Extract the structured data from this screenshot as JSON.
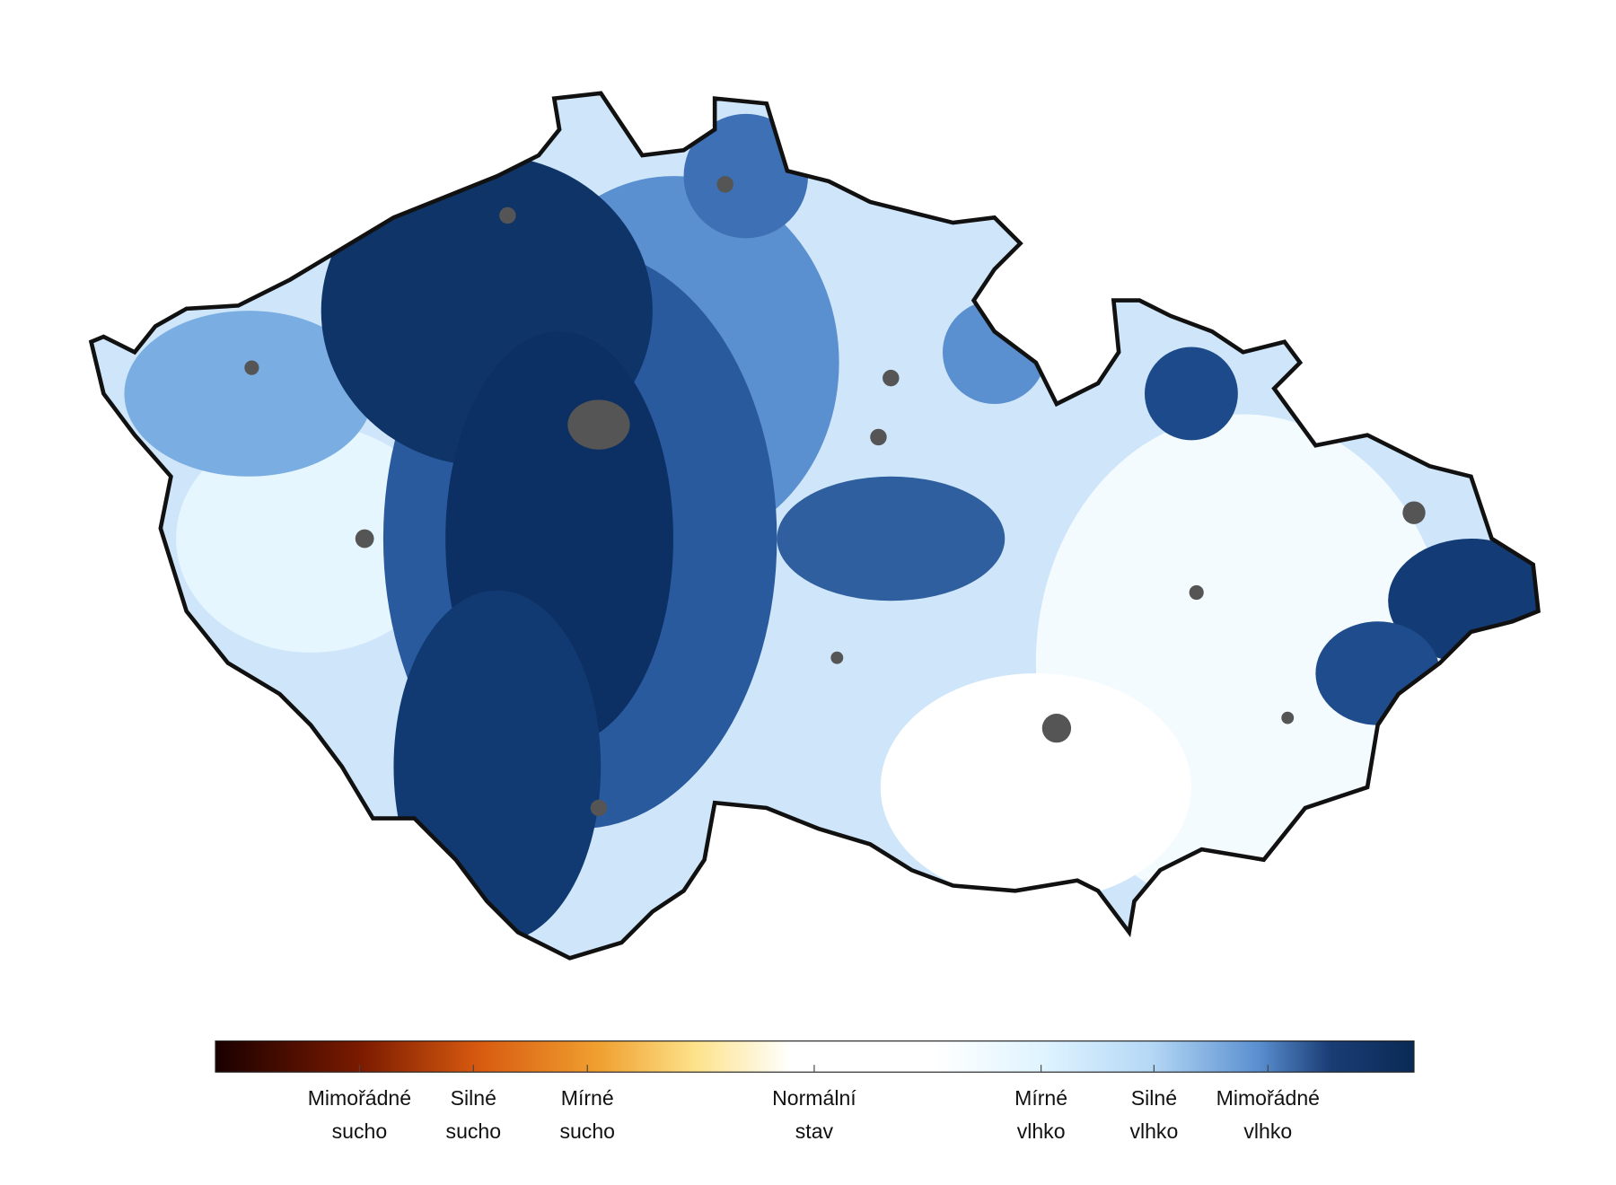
{
  "legend": {
    "items": [
      {
        "line1": "Mimořádné",
        "line2": "sucho"
      },
      {
        "line1": "Silné",
        "line2": "sucho"
      },
      {
        "line1": "Mírné",
        "line2": "sucho"
      },
      {
        "line1": "Normální",
        "line2": "stav"
      },
      {
        "line1": "Mírné",
        "line2": "vlhko"
      },
      {
        "line1": "Silné",
        "line2": "vlhko"
      },
      {
        "line1": "Mimořádné",
        "line2": "vlhko"
      }
    ]
  }
}
